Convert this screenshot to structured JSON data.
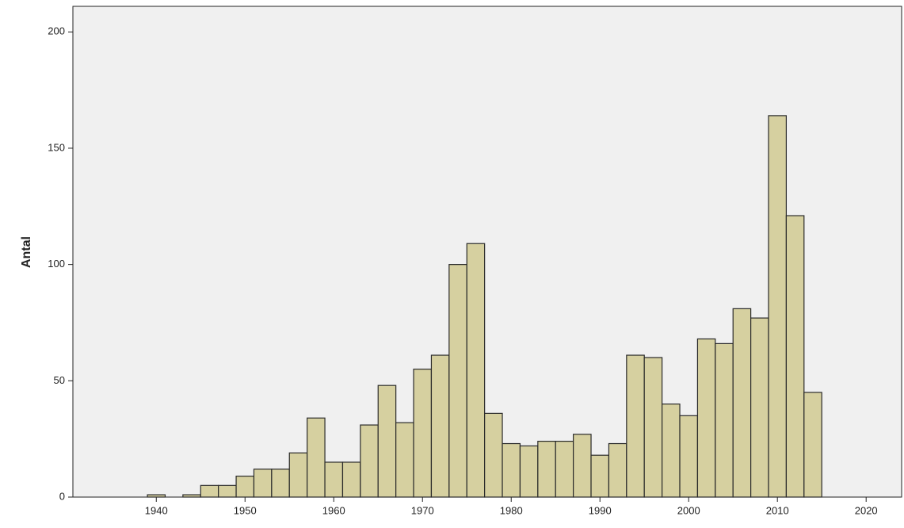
{
  "chart_data": {
    "type": "histogram",
    "y_label": "Antal",
    "bins": [
      1939,
      1941,
      1943,
      1945,
      1947,
      1949,
      1951,
      1953,
      1955,
      1957,
      1959,
      1961,
      1963,
      1965,
      1967,
      1969,
      1971,
      1973,
      1975,
      1977,
      1979,
      1981,
      1983,
      1985,
      1987,
      1989,
      1991,
      1993,
      1995,
      1997,
      1999,
      2001,
      2003,
      2005,
      2007,
      2009,
      2011,
      2013,
      2015
    ],
    "values": [
      1,
      0,
      1,
      5,
      5,
      9,
      12,
      12,
      19,
      34,
      15,
      15,
      31,
      48,
      32,
      55,
      61,
      100,
      109,
      36,
      23,
      22,
      24,
      24,
      27,
      18,
      23,
      61,
      60,
      40,
      35,
      68,
      66,
      81,
      77,
      164,
      121,
      45
    ],
    "color": "#d6d0a0",
    "xlim": [
      1930.6,
      2024
    ],
    "xticks": [
      1940,
      1950,
      1960,
      1970,
      1980,
      1990,
      2000,
      2010,
      2020
    ],
    "ylim": [
      0,
      211
    ],
    "yticks": [
      0,
      50,
      100,
      150,
      200
    ]
  }
}
